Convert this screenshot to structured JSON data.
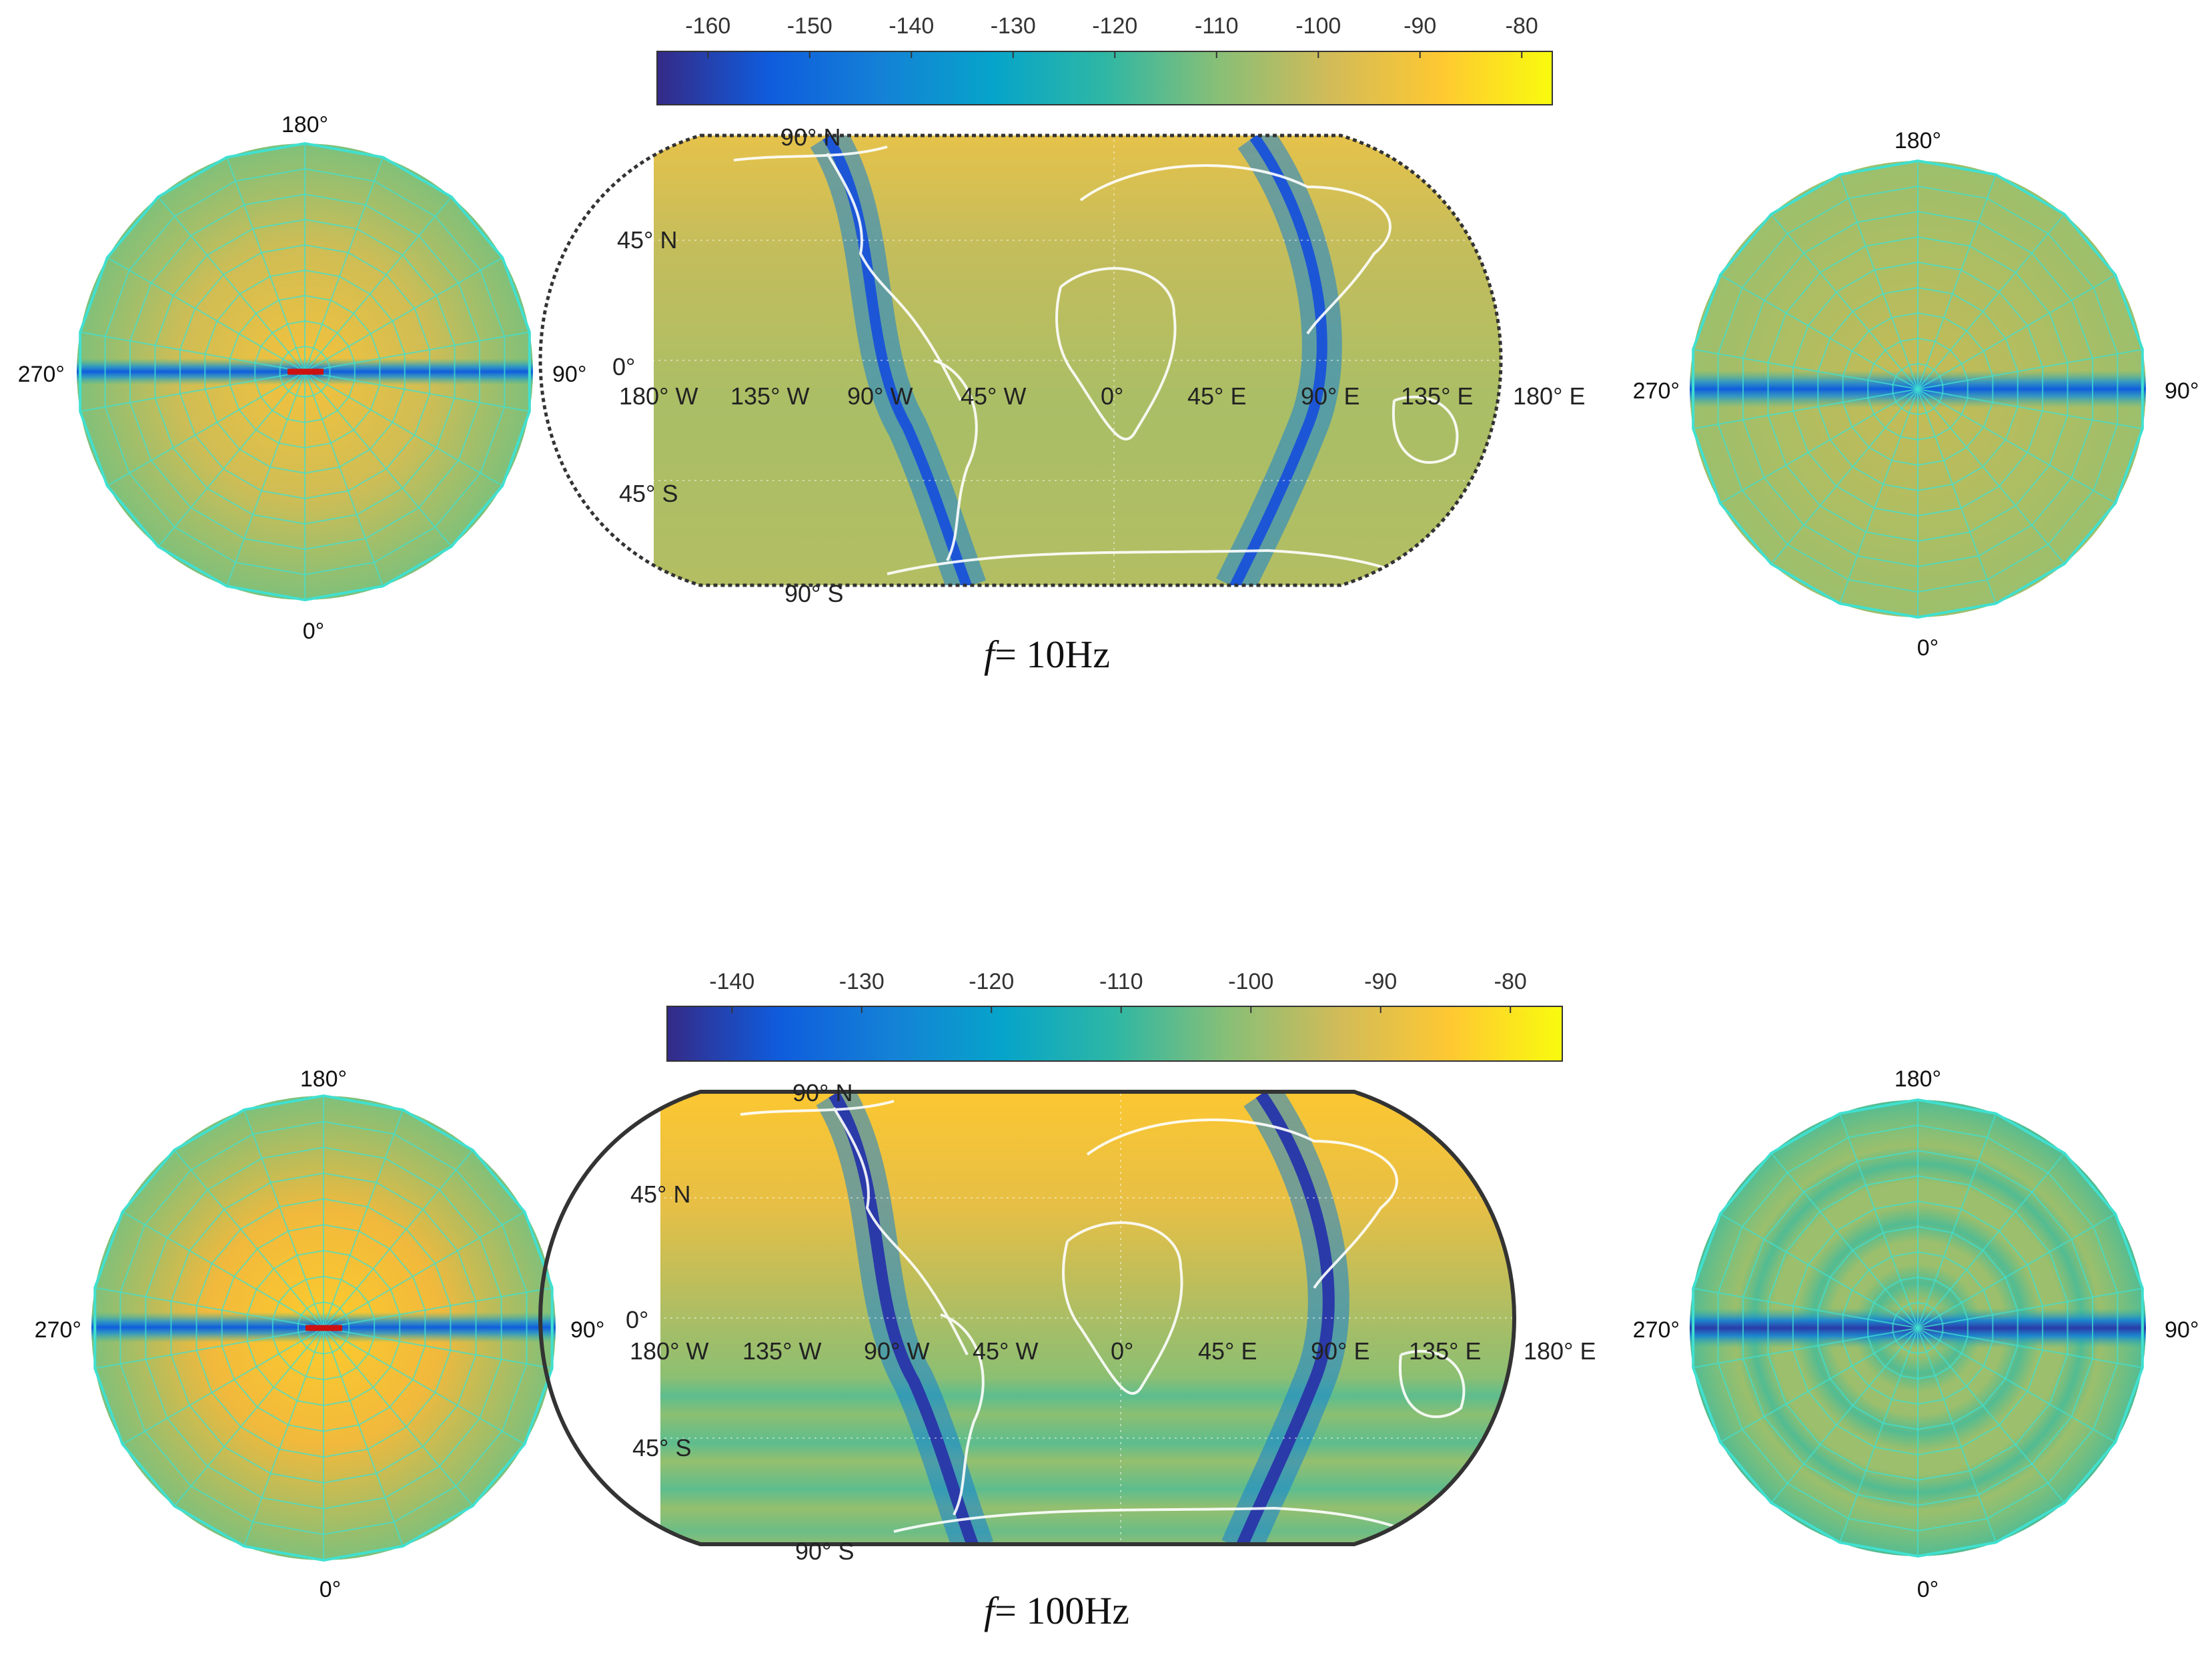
{
  "panels": [
    {
      "caption_var": "f",
      "caption_value": "= 10Hz",
      "colorbar_ticks": [
        "-160",
        "-150",
        "-140",
        "-130",
        "-120",
        "-110",
        "-100",
        "-90",
        "-80"
      ],
      "colorbar_range": [
        -165,
        -77
      ],
      "left_polar": {
        "angle_labels": {
          "top": "180°",
          "right": "90°",
          "bottom": "0°",
          "left": "270°"
        }
      },
      "right_polar": {
        "angle_labels": {
          "top": "180°",
          "right": "90°",
          "bottom": "0°",
          "left": "270°"
        }
      },
      "map": {
        "lat_labels": [
          "90° N",
          "45° N",
          "0°",
          "45° S",
          "90° S"
        ],
        "lon_labels": [
          "180° W",
          "135° W",
          "90° W",
          "45° W",
          "0°",
          "45° E",
          "90° E",
          "135° E",
          "180° E"
        ]
      }
    },
    {
      "caption_var": "f",
      "caption_value": "= 100Hz",
      "colorbar_ticks": [
        "-140",
        "-130",
        "-120",
        "-110",
        "-100",
        "-90",
        "-80"
      ],
      "colorbar_range": [
        -145,
        -76
      ],
      "left_polar": {
        "angle_labels": {
          "top": "180°",
          "right": "90°",
          "bottom": "0°",
          "left": "270°"
        }
      },
      "right_polar": {
        "angle_labels": {
          "top": "180°",
          "right": "90°",
          "bottom": "0°",
          "left": "270°"
        }
      },
      "map": {
        "lat_labels": [
          "90° N",
          "45° N",
          "0°",
          "45° S",
          "90° S"
        ],
        "lon_labels": [
          "180° W",
          "135° W",
          "90° W",
          "45° W",
          "0°",
          "45° E",
          "90° E",
          "135° E",
          "180° E"
        ]
      }
    }
  ],
  "colors": {
    "parula": [
      "#352a87",
      "#0f5cdd",
      "#1481d6",
      "#06a4ca",
      "#2eb7a4",
      "#87bf77",
      "#d1bb59",
      "#fec832",
      "#f9fb0e"
    ],
    "polar_grid": "#40e0d0",
    "dipole": "#cc1111"
  }
}
